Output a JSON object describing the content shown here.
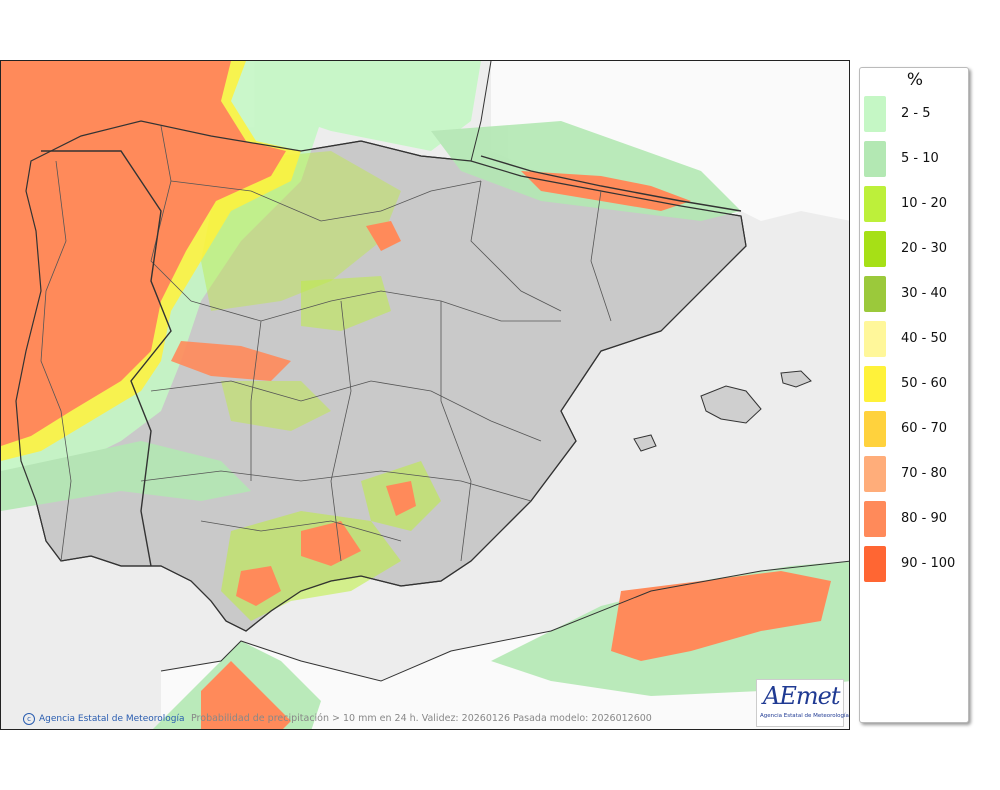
{
  "map": {
    "credit": "Agencia Estatal de Meteorología",
    "caption": "Probabilidad de precipitación > 10 mm en 24 h. Validez: 20260126 Pasada modelo: 2026012600",
    "logo_text": "AEmet",
    "logo_subtext": "Agencia Estatal de Meteorología"
  },
  "legend": {
    "title": "%",
    "items": [
      {
        "label": "2 - 5",
        "color": "#c5f7c5"
      },
      {
        "label": "5 - 10",
        "color": "#b3e8b3"
      },
      {
        "label": "10 - 20",
        "color": "#bdf03a"
      },
      {
        "label": "20 - 30",
        "color": "#a6e016"
      },
      {
        "label": "30 - 40",
        "color": "#9bc93b"
      },
      {
        "label": "40 - 50",
        "color": "#fff79a"
      },
      {
        "label": "50 - 60",
        "color": "#fff23a"
      },
      {
        "label": "60 - 70",
        "color": "#ffd23d"
      },
      {
        "label": "70 - 80",
        "color": "#ffad7a"
      },
      {
        "label": "80 - 90",
        "color": "#ff8a5a"
      },
      {
        "label": "90 - 100",
        "color": "#ff6633"
      }
    ]
  }
}
